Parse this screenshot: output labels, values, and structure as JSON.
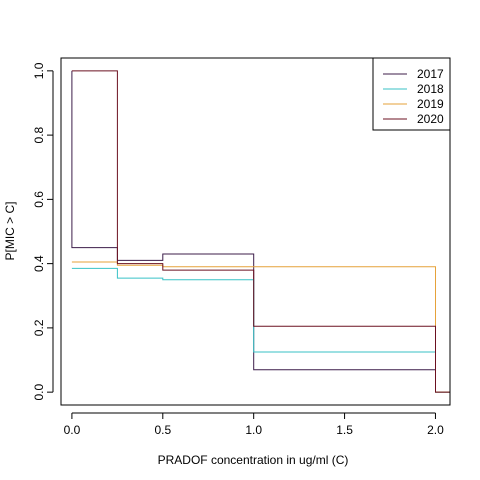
{
  "chart_data": {
    "type": "line",
    "subtype": "step",
    "title": "",
    "xlabel": "PRADOF concentration in ug/ml (C)",
    "ylabel": "P[MIC > C]",
    "xlim": [
      -0.06,
      2.08
    ],
    "ylim": [
      -0.04,
      1.04
    ],
    "x_ticks": [
      0.0,
      0.5,
      1.0,
      1.5,
      2.0
    ],
    "x_tick_labels": [
      "0.0",
      "0.5",
      "1.0",
      "1.5",
      "2.0"
    ],
    "y_ticks": [
      0.0,
      0.2,
      0.4,
      0.6,
      0.8,
      1.0
    ],
    "y_tick_labels": [
      "0.0",
      "0.2",
      "0.4",
      "0.6",
      "0.8",
      "1.0"
    ],
    "legend_position": "top-right",
    "series": [
      {
        "name": "2017",
        "color": "#3d1d4a",
        "points": [
          [
            0,
            1.0
          ],
          [
            0,
            0.45
          ],
          [
            0.25,
            0.45
          ],
          [
            0.25,
            0.41
          ],
          [
            0.5,
            0.41
          ],
          [
            0.5,
            0.43
          ],
          [
            1.0,
            0.43
          ],
          [
            1.0,
            0.07
          ],
          [
            2.0,
            0.07
          ],
          [
            2.0,
            0.0
          ],
          [
            2.08,
            0.0
          ]
        ]
      },
      {
        "name": "2018",
        "color": "#38c2c6",
        "points": [
          [
            0,
            0.385
          ],
          [
            0.25,
            0.385
          ],
          [
            0.25,
            0.355
          ],
          [
            0.5,
            0.355
          ],
          [
            0.5,
            0.35
          ],
          [
            1.0,
            0.35
          ],
          [
            1.0,
            0.125
          ],
          [
            2.0,
            0.125
          ],
          [
            2.0,
            0.0
          ],
          [
            2.08,
            0.0
          ]
        ]
      },
      {
        "name": "2019",
        "color": "#e6a23a",
        "points": [
          [
            0,
            0.405
          ],
          [
            0.25,
            0.405
          ],
          [
            0.25,
            0.395
          ],
          [
            0.5,
            0.395
          ],
          [
            0.5,
            0.39
          ],
          [
            2.0,
            0.39
          ],
          [
            2.0,
            0.0
          ],
          [
            2.08,
            0.0
          ]
        ]
      },
      {
        "name": "2020",
        "color": "#6b1020",
        "points": [
          [
            0,
            1.0
          ],
          [
            0.25,
            1.0
          ],
          [
            0.25,
            0.4
          ],
          [
            0.5,
            0.4
          ],
          [
            0.5,
            0.38
          ],
          [
            1.0,
            0.38
          ],
          [
            1.0,
            0.205
          ],
          [
            2.0,
            0.205
          ],
          [
            2.0,
            0.0
          ],
          [
            2.08,
            0.0
          ]
        ]
      }
    ]
  }
}
